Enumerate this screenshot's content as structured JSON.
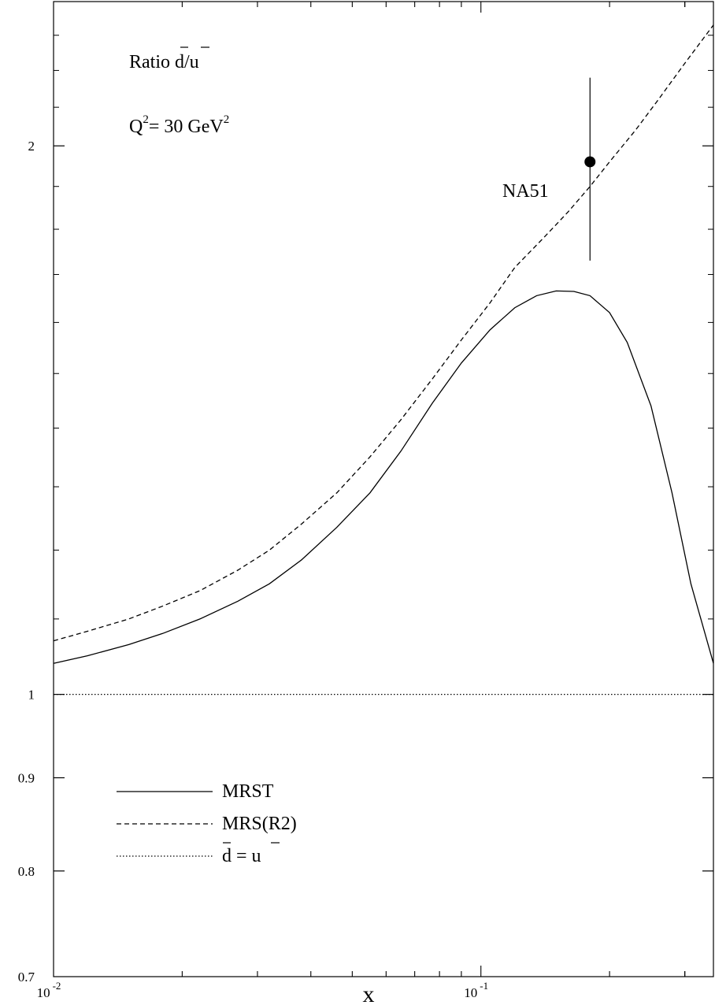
{
  "chart_data": {
    "type": "line",
    "x_scale": "log",
    "y_scale": "log",
    "xlim": [
      0.01,
      0.35
    ],
    "ylim": [
      0.7,
      2.4
    ],
    "xlabel": "x",
    "x_ticks": [
      {
        "value": 0.01,
        "base": "10",
        "exp": "-2"
      },
      {
        "value": 0.1,
        "base": "10",
        "exp": "-1"
      }
    ],
    "y_ticks": [
      {
        "value": 0.7,
        "label": "0.7"
      },
      {
        "value": 0.8,
        "label": "0.8"
      },
      {
        "value": 0.9,
        "label": "0.9"
      },
      {
        "value": 1,
        "label": "1"
      },
      {
        "value": 2,
        "label": "2"
      }
    ],
    "annotations": {
      "ratio_prefix": "Ratio ",
      "ratio_d": "d",
      "ratio_slash": "/",
      "ratio_u": "u",
      "q2_q": "Q",
      "q2_exp": "2",
      "q2_mid": "= 30 GeV",
      "q2_exp2": "2"
    },
    "series": [
      {
        "name": "MRST",
        "style": "solid",
        "x": [
          0.01,
          0.012,
          0.015,
          0.018,
          0.022,
          0.027,
          0.032,
          0.038,
          0.046,
          0.055,
          0.065,
          0.077,
          0.09,
          0.105,
          0.12,
          0.135,
          0.15,
          0.165,
          0.18,
          0.2,
          0.22,
          0.25,
          0.28,
          0.31,
          0.35
        ],
        "values": [
          1.04,
          1.05,
          1.065,
          1.08,
          1.1,
          1.125,
          1.15,
          1.185,
          1.235,
          1.29,
          1.36,
          1.445,
          1.52,
          1.585,
          1.63,
          1.655,
          1.665,
          1.664,
          1.655,
          1.62,
          1.56,
          1.44,
          1.29,
          1.15,
          1.04
        ]
      },
      {
        "name": "MRS(R2)",
        "style": "dashed",
        "x": [
          0.01,
          0.012,
          0.015,
          0.018,
          0.022,
          0.027,
          0.032,
          0.038,
          0.046,
          0.055,
          0.065,
          0.077,
          0.09,
          0.105,
          0.12,
          0.14,
          0.16,
          0.18,
          0.2,
          0.23,
          0.26,
          0.3,
          0.35
        ],
        "values": [
          1.07,
          1.083,
          1.1,
          1.118,
          1.14,
          1.17,
          1.2,
          1.24,
          1.29,
          1.35,
          1.415,
          1.49,
          1.565,
          1.64,
          1.715,
          1.78,
          1.84,
          1.9,
          1.96,
          2.04,
          2.12,
          2.22,
          2.33
        ]
      },
      {
        "name": "d̄ = ū",
        "style": "dotted",
        "x": [
          0.01,
          0.35
        ],
        "values": [
          1,
          1
        ]
      }
    ],
    "data_points": [
      {
        "label": "NA51",
        "x": 0.18,
        "y": 1.96,
        "y_low": 1.73,
        "y_high": 2.18
      }
    ],
    "legend": {
      "placement": "bottom-left",
      "entries": [
        {
          "label": "MRST",
          "style": "solid"
        },
        {
          "label": "MRS(R2)",
          "style": "dashed"
        },
        {
          "label_d": "d",
          "label_mid": " = ",
          "label_u": "u",
          "style": "dotted"
        }
      ]
    }
  }
}
